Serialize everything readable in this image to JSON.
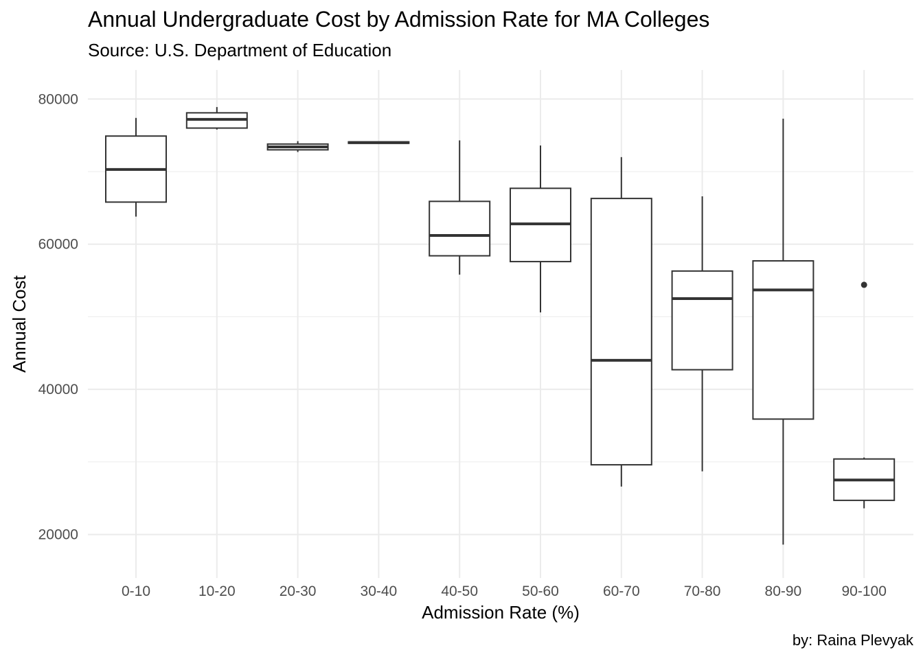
{
  "chart_data": {
    "type": "boxplot",
    "title": "Annual Undergraduate Cost by Admission Rate for MA Colleges",
    "subtitle": "Source: U.S. Department of Education",
    "xlabel": "Admission Rate (%)",
    "ylabel": "Annual Cost",
    "caption": "by: Raina Plevyak",
    "ylim": [
      14000,
      84000
    ],
    "yticks": [
      20000,
      40000,
      60000,
      80000
    ],
    "grid": true,
    "categories": [
      "0-10",
      "10-20",
      "20-30",
      "30-40",
      "40-50",
      "50-60",
      "60-70",
      "70-80",
      "80-90",
      "90-100"
    ],
    "boxes": [
      {
        "category": "0-10",
        "min": 63800,
        "q1": 65800,
        "median": 70300,
        "q3": 74900,
        "max": 77400,
        "outliers": []
      },
      {
        "category": "10-20",
        "min": 75800,
        "q1": 76000,
        "median": 77200,
        "q3": 78100,
        "max": 78900,
        "outliers": []
      },
      {
        "category": "20-30",
        "min": 72700,
        "q1": 73000,
        "median": 73400,
        "q3": 73800,
        "max": 74200,
        "outliers": []
      },
      {
        "category": "30-40",
        "min": 73900,
        "q1": 73900,
        "median": 74000,
        "q3": 74100,
        "max": 74100,
        "outliers": []
      },
      {
        "category": "40-50",
        "min": 55800,
        "q1": 58400,
        "median": 61200,
        "q3": 65900,
        "max": 74300,
        "outliers": []
      },
      {
        "category": "50-60",
        "min": 50600,
        "q1": 57600,
        "median": 62800,
        "q3": 67700,
        "max": 73600,
        "outliers": []
      },
      {
        "category": "60-70",
        "min": 26600,
        "q1": 29600,
        "median": 44000,
        "q3": 66300,
        "max": 72000,
        "outliers": []
      },
      {
        "category": "70-80",
        "min": 28700,
        "q1": 42700,
        "median": 52500,
        "q3": 56300,
        "max": 66600,
        "outliers": []
      },
      {
        "category": "80-90",
        "min": 18600,
        "q1": 35900,
        "median": 53700,
        "q3": 57700,
        "max": 77300,
        "outliers": []
      },
      {
        "category": "90-100",
        "min": 23600,
        "q1": 24700,
        "median": 27500,
        "q3": 30400,
        "max": 30600,
        "outliers": [
          54400
        ]
      }
    ],
    "colors": {
      "box_line": "#333333",
      "box_fill": "#ffffff",
      "grid": "#ebebeb",
      "tick_text": "#4d4d4d"
    }
  }
}
